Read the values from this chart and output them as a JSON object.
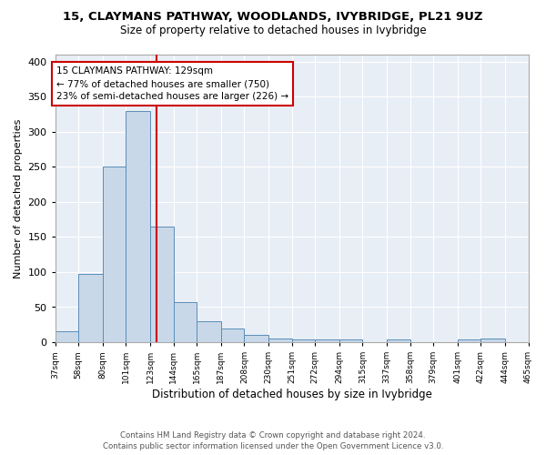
{
  "title1": "15, CLAYMANS PATHWAY, WOODLANDS, IVYBRIDGE, PL21 9UZ",
  "title2": "Size of property relative to detached houses in Ivybridge",
  "xlabel": "Distribution of detached houses by size in Ivybridge",
  "ylabel": "Number of detached properties",
  "annotation_line1": "15 CLAYMANS PATHWAY: 129sqm",
  "annotation_line2": "← 77% of detached houses are smaller (750)",
  "annotation_line3": "23% of semi-detached houses are larger (226) →",
  "property_value": 129,
  "bar_edges": [
    37,
    58,
    80,
    101,
    123,
    144,
    165,
    187,
    208,
    230,
    251,
    272,
    294,
    315,
    337,
    358,
    379,
    401,
    422,
    444,
    465
  ],
  "bar_heights": [
    15,
    97,
    251,
    330,
    165,
    57,
    30,
    19,
    10,
    5,
    4,
    4,
    4,
    0,
    4,
    0,
    0,
    4,
    5,
    0,
    3
  ],
  "bar_color": "#c8d8e8",
  "bar_edge_color": "#5b8db8",
  "vline_color": "#cc0000",
  "vline_x": 129,
  "background_color": "#e8eef6",
  "footer": "Contains HM Land Registry data © Crown copyright and database right 2024.\nContains public sector information licensed under the Open Government Licence v3.0.",
  "tick_labels": [
    "37sqm",
    "58sqm",
    "80sqm",
    "101sqm",
    "123sqm",
    "144sqm",
    "165sqm",
    "187sqm",
    "208sqm",
    "230sqm",
    "251sqm",
    "272sqm",
    "294sqm",
    "315sqm",
    "337sqm",
    "358sqm",
    "379sqm",
    "401sqm",
    "422sqm",
    "444sqm",
    "465sqm"
  ],
  "ylim": [
    0,
    410
  ],
  "yticks": [
    0,
    50,
    100,
    150,
    200,
    250,
    300,
    350,
    400
  ]
}
